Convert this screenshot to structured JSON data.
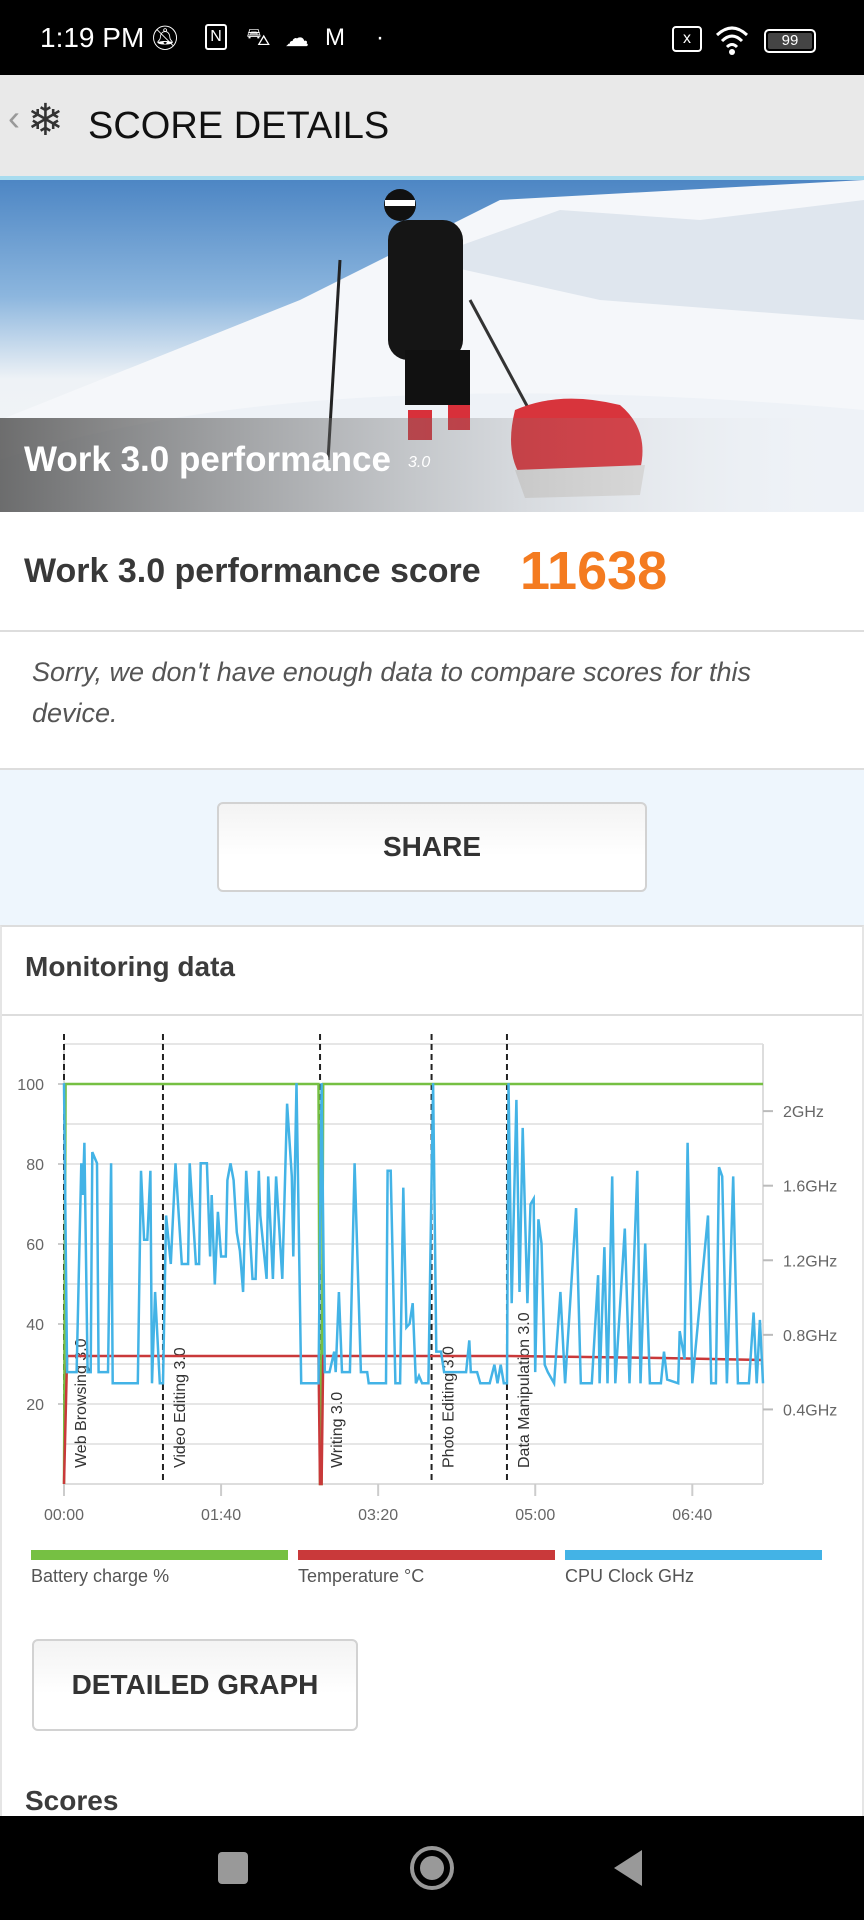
{
  "status_bar": {
    "time": "1:19 PM",
    "battery": "99",
    "icons": [
      "mute-bell-icon",
      "nfc-icon",
      "car-icon",
      "cloud-icon",
      "gmail-icon",
      "dot-icon",
      "sim-x-icon",
      "wifi-icon",
      "battery-icon"
    ]
  },
  "header": {
    "title": "SCORE DETAILS",
    "back_icon": "chevron-left-icon",
    "logo_icon": "snowflake-icon"
  },
  "hero": {
    "title": "Work 3.0 performance",
    "version": "3.0"
  },
  "score": {
    "label": "Work 3.0 performance score",
    "value": "11638",
    "value_color": "#f47b20"
  },
  "notice": "Sorry, we don't have enough data to compare scores for this device.",
  "share_label": "SHARE",
  "monitoring": {
    "title": "Monitoring data",
    "detailed_graph_label": "DETAILED GRAPH",
    "scores_title": "Scores"
  },
  "chart_data": {
    "type": "line",
    "x_ticks": [
      "00:00",
      "01:40",
      "03:20",
      "05:00",
      "06:40"
    ],
    "x_unit": "seconds",
    "xlim": [
      0,
      445
    ],
    "y_left_ticks": [
      "100",
      "80",
      "60",
      "40",
      "20"
    ],
    "ylim_left": [
      0,
      110
    ],
    "y_right_ticks": [
      "2GHz",
      "1.6GHz",
      "1.2GHz",
      "0.8GHz",
      "0.4GHz"
    ],
    "ylim_right_ghz": [
      0,
      2.36
    ],
    "grid": true,
    "markers": [
      {
        "t": 0,
        "label": "Web Browsing 3.0"
      },
      {
        "t": 63,
        "label": "Video Editing 3.0"
      },
      {
        "t": 163,
        "label": "Writing 3.0"
      },
      {
        "t": 234,
        "label": "Photo Editing 3.0"
      },
      {
        "t": 282,
        "label": "Data Manipulation 3.0"
      }
    ],
    "legend": [
      {
        "name": "Battery charge %",
        "color": "#76c043"
      },
      {
        "name": "Temperature °C",
        "color": "#c9393a"
      },
      {
        "name": "CPU Clock GHz",
        "color": "#43b3e6"
      }
    ],
    "legend_position": "bottom",
    "series": [
      {
        "name": "Battery charge %",
        "axis": "left",
        "points": [
          [
            0,
            0
          ],
          [
            1,
            100
          ],
          [
            162,
            100
          ],
          [
            163,
            0
          ],
          [
            164,
            0
          ],
          [
            165,
            100
          ],
          [
            445,
            100
          ]
        ]
      },
      {
        "name": "Temperature °C",
        "axis": "left",
        "points": [
          [
            0,
            0
          ],
          [
            2,
            32
          ],
          [
            60,
            32
          ],
          [
            162,
            32
          ],
          [
            163,
            0
          ],
          [
            164,
            0
          ],
          [
            165,
            32
          ],
          [
            280,
            32
          ],
          [
            380,
            31.5
          ],
          [
            445,
            31
          ]
        ]
      },
      {
        "name": "CPU Clock GHz",
        "axis": "right",
        "points": [
          [
            0,
            2.15
          ],
          [
            2,
            0.6
          ],
          [
            8,
            0.6
          ],
          [
            11,
            1.72
          ],
          [
            12,
            1.55
          ],
          [
            13,
            1.83
          ],
          [
            15,
            0.6
          ],
          [
            17,
            0.6
          ],
          [
            18,
            1.78
          ],
          [
            21,
            1.72
          ],
          [
            22,
            0.6
          ],
          [
            28,
            0.6
          ],
          [
            30,
            1.72
          ],
          [
            31,
            0.54
          ],
          [
            47,
            0.54
          ],
          [
            49,
            1.68
          ],
          [
            51,
            1.31
          ],
          [
            53,
            1.31
          ],
          [
            55,
            1.68
          ],
          [
            56,
            0.54
          ],
          [
            58,
            1.03
          ],
          [
            61,
            0.54
          ],
          [
            63,
            0.54
          ],
          [
            65,
            1.44
          ],
          [
            68,
            1.18
          ],
          [
            71,
            1.72
          ],
          [
            75,
            1.18
          ],
          [
            79,
            1.18
          ],
          [
            80,
            1.72
          ],
          [
            84,
            1.18
          ],
          [
            86,
            1.18
          ],
          [
            87,
            1.72
          ],
          [
            91,
            1.72
          ],
          [
            93,
            1.22
          ],
          [
            94,
            1.55
          ],
          [
            96,
            1.07
          ],
          [
            98,
            1.46
          ],
          [
            100,
            1.22
          ],
          [
            103,
            1.22
          ],
          [
            104,
            1.63
          ],
          [
            106,
            1.72
          ],
          [
            108,
            1.63
          ],
          [
            110,
            1.35
          ],
          [
            112,
            1.25
          ],
          [
            114,
            1.03
          ],
          [
            116,
            1.68
          ],
          [
            120,
            1.1
          ],
          [
            122,
            1.1
          ],
          [
            124,
            1.68
          ],
          [
            125,
            1.44
          ],
          [
            129,
            1.1
          ],
          [
            130,
            1.65
          ],
          [
            133,
            1.1
          ],
          [
            135,
            1.65
          ],
          [
            139,
            1.1
          ],
          [
            142,
            2.04
          ],
          [
            145,
            1.65
          ],
          [
            146,
            1.22
          ],
          [
            148,
            2.15
          ],
          [
            151,
            0.54
          ],
          [
            162,
            0.54
          ],
          [
            164,
            2.15
          ],
          [
            166,
            0.6
          ],
          [
            169,
            0.6
          ],
          [
            172,
            0.71
          ],
          [
            173,
            0.6
          ],
          [
            175,
            1.03
          ],
          [
            177,
            0.6
          ],
          [
            182,
            0.6
          ],
          [
            185,
            1.72
          ],
          [
            189,
            0.6
          ],
          [
            193,
            0.6
          ],
          [
            194,
            0.54
          ],
          [
            205,
            0.54
          ],
          [
            206,
            1.68
          ],
          [
            208,
            1.68
          ],
          [
            211,
            0.54
          ],
          [
            214,
            0.54
          ],
          [
            216,
            1.59
          ],
          [
            218,
            0.84
          ],
          [
            220,
            0.86
          ],
          [
            222,
            0.97
          ],
          [
            224,
            0.54
          ],
          [
            226,
            0.58
          ],
          [
            228,
            0.54
          ],
          [
            232,
            0.54
          ],
          [
            235,
            2.15
          ],
          [
            237,
            0.71
          ],
          [
            240,
            0.71
          ],
          [
            242,
            0.6
          ],
          [
            256,
            0.6
          ],
          [
            258,
            0.77
          ],
          [
            259,
            0.6
          ],
          [
            263,
            0.6
          ],
          [
            265,
            0.54
          ],
          [
            271,
            0.54
          ],
          [
            274,
            0.64
          ],
          [
            276,
            0.54
          ],
          [
            278,
            0.64
          ],
          [
            280,
            0.54
          ],
          [
            282,
            0.54
          ],
          [
            283,
            2.15
          ],
          [
            285,
            0.97
          ],
          [
            288,
            2.06
          ],
          [
            290,
            1.03
          ],
          [
            292,
            1.91
          ],
          [
            295,
            0.97
          ],
          [
            297,
            1.5
          ],
          [
            299,
            1.53
          ],
          [
            300,
            0.6
          ],
          [
            302,
            1.42
          ],
          [
            304,
            1.29
          ],
          [
            306,
            0.64
          ],
          [
            308,
            0.6
          ],
          [
            312,
            0.54
          ],
          [
            316,
            1.03
          ],
          [
            319,
            0.54
          ],
          [
            326,
            1.48
          ],
          [
            329,
            0.54
          ],
          [
            336,
            0.54
          ],
          [
            340,
            1.12
          ],
          [
            341,
            0.54
          ],
          [
            344,
            1.27
          ],
          [
            346,
            0.54
          ],
          [
            349,
            1.65
          ],
          [
            351,
            0.54
          ],
          [
            357,
            1.37
          ],
          [
            360,
            0.54
          ],
          [
            365,
            1.68
          ],
          [
            367,
            0.54
          ],
          [
            370,
            1.29
          ],
          [
            373,
            0.54
          ],
          [
            380,
            0.54
          ],
          [
            382,
            0.71
          ],
          [
            384,
            0.56
          ],
          [
            391,
            0.54
          ],
          [
            392,
            0.82
          ],
          [
            395,
            0.67
          ],
          [
            397,
            1.83
          ],
          [
            400,
            0.54
          ],
          [
            410,
            1.44
          ],
          [
            412,
            0.54
          ],
          [
            415,
            0.54
          ],
          [
            417,
            1.7
          ],
          [
            419,
            1.65
          ],
          [
            422,
            0.54
          ],
          [
            426,
            1.65
          ],
          [
            429,
            0.54
          ],
          [
            436,
            0.54
          ],
          [
            439,
            0.92
          ],
          [
            441,
            0.54
          ],
          [
            443,
            0.88
          ],
          [
            445,
            0.54
          ]
        ]
      }
    ]
  }
}
